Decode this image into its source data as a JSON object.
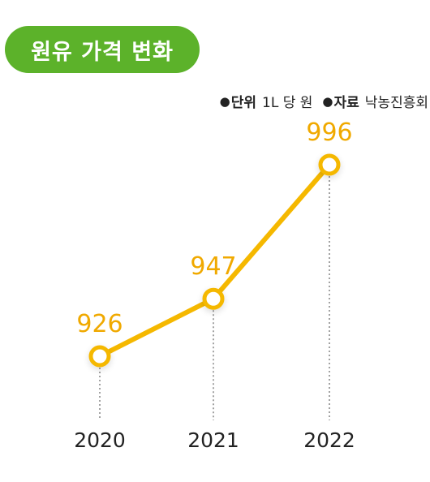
{
  "header": {
    "title": "원유 가격 변화",
    "unit_key": "단위",
    "unit_value": "1L 당 원",
    "source_key": "자료",
    "source_value": "낙농진흥회"
  },
  "colors": {
    "title_bg": "#5cb22a",
    "line": "#f5b800",
    "value_text": "#f0a900",
    "axis_text": "#222222",
    "guide": "#444444"
  },
  "chart_data": {
    "type": "line",
    "categories": [
      "2020",
      "2021",
      "2022"
    ],
    "values": [
      926,
      947,
      996
    ],
    "data_labels": [
      "926",
      "947",
      "996"
    ],
    "title": "원유 가격 변화",
    "grid": false,
    "legend": "none"
  }
}
